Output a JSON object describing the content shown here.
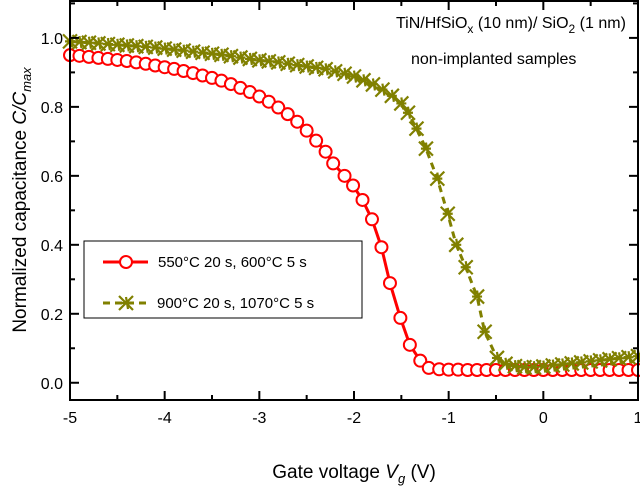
{
  "chart_data": {
    "type": "scatter",
    "xlabel": {
      "prefix": "Gate voltage ",
      "var": "V",
      "sub": "g",
      "suffix": " (V)"
    },
    "ylabel": {
      "prefix": "Normalized capacitance ",
      "var": "C/C",
      "sub": "max"
    },
    "xlim": [
      -5,
      1
    ],
    "ylim": [
      -0.05,
      1.107
    ],
    "xticks": [
      -5,
      -4,
      -3,
      -2,
      -1,
      0,
      1
    ],
    "xtick_labels": [
      "-5",
      "-4",
      "-3",
      "-2",
      "-1",
      "0",
      "1"
    ],
    "yticks": [
      0.0,
      0.2,
      0.4,
      0.6,
      0.8,
      1.0
    ],
    "ytick_labels": [
      "0.0",
      "0.2",
      "0.4",
      "0.6",
      "0.8",
      "1.0"
    ],
    "grid": false,
    "legend_position": "center-left",
    "annotation": {
      "line1_a": "TiN/HfSiO",
      "line1_sub1": "x",
      "line1_b": " (10 nm)/ SiO",
      "line1_sub2": "2",
      "line1_c": " (1 nm)",
      "line2": "non-implanted samples"
    },
    "series": [
      {
        "name": "550°C 20 s, 600°C 5 s",
        "color": "#ff0000",
        "marker": "open-circle",
        "line": "solid",
        "x": [
          -5,
          -4.9,
          -4.8,
          -4.7,
          -4.6,
          -4.5,
          -4.4,
          -4.3,
          -4.2,
          -4.1,
          -4.0,
          -3.9,
          -3.8,
          -3.7,
          -3.6,
          -3.5,
          -3.4,
          -3.3,
          -3.2,
          -3.1,
          -3.0,
          -2.9,
          -2.8,
          -2.7,
          -2.6,
          -2.5,
          -2.4,
          -2.3,
          -2.22,
          -2.1,
          -2.01,
          -1.91,
          -1.81,
          -1.71,
          -1.62,
          -1.51,
          -1.41,
          -1.3,
          -1.21,
          -1.1,
          -1.0,
          -0.9,
          -0.8,
          -0.7,
          -0.6,
          -0.5,
          -0.4,
          -0.3,
          -0.2,
          -0.1,
          0,
          0.1,
          0.2,
          0.3,
          0.4,
          0.5,
          0.6,
          0.7,
          0.8,
          0.9,
          1.0
        ],
        "y": [
          0.95,
          0.948,
          0.945,
          0.942,
          0.939,
          0.936,
          0.933,
          0.929,
          0.925,
          0.92,
          0.915,
          0.91,
          0.904,
          0.898,
          0.891,
          0.884,
          0.876,
          0.866,
          0.855,
          0.843,
          0.83,
          0.815,
          0.798,
          0.779,
          0.757,
          0.731,
          0.702,
          0.67,
          0.636,
          0.6,
          0.572,
          0.53,
          0.474,
          0.393,
          0.289,
          0.188,
          0.11,
          0.064,
          0.043,
          0.039,
          0.038,
          0.038,
          0.037,
          0.037,
          0.037,
          0.037,
          0.037,
          0.037,
          0.037,
          0.037,
          0.037,
          0.037,
          0.037,
          0.037,
          0.037,
          0.037,
          0.037,
          0.037,
          0.037,
          0.037,
          0.037
        ]
      },
      {
        "name": "900°C 20 s, 1070°C 5 s",
        "color": "#808000",
        "marker": "x-star",
        "line": "dashed",
        "x": [
          -5,
          -4.9,
          -4.8,
          -4.7,
          -4.6,
          -4.5,
          -4.4,
          -4.3,
          -4.2,
          -4.1,
          -4.0,
          -3.9,
          -3.8,
          -3.7,
          -3.6,
          -3.5,
          -3.4,
          -3.3,
          -3.2,
          -3.1,
          -3.0,
          -2.9,
          -2.8,
          -2.7,
          -2.6,
          -2.5,
          -2.4,
          -2.3,
          -2.2,
          -2.1,
          -2.0,
          -1.9,
          -1.8,
          -1.7,
          -1.6,
          -1.5,
          -1.43,
          -1.34,
          -1.24,
          -1.12,
          -1.01,
          -0.92,
          -0.82,
          -0.7,
          -0.62,
          -0.49,
          -0.4,
          -0.3,
          -0.2,
          -0.1,
          0,
          0.1,
          0.2,
          0.3,
          0.4,
          0.5,
          0.6,
          0.7,
          0.8,
          0.9,
          1.0
        ],
        "y": [
          0.99,
          0.988,
          0.986,
          0.984,
          0.982,
          0.98,
          0.978,
          0.976,
          0.974,
          0.972,
          0.969,
          0.966,
          0.963,
          0.96,
          0.957,
          0.954,
          0.951,
          0.947,
          0.943,
          0.939,
          0.935,
          0.932,
          0.929,
          0.925,
          0.921,
          0.917,
          0.913,
          0.909,
          0.903,
          0.896,
          0.888,
          0.877,
          0.865,
          0.85,
          0.832,
          0.81,
          0.783,
          0.737,
          0.679,
          0.592,
          0.49,
          0.4,
          0.335,
          0.25,
          0.148,
          0.072,
          0.055,
          0.048,
          0.045,
          0.045,
          0.047,
          0.05,
          0.053,
          0.056,
          0.059,
          0.062,
          0.065,
          0.068,
          0.071,
          0.074,
          0.077
        ]
      }
    ]
  }
}
